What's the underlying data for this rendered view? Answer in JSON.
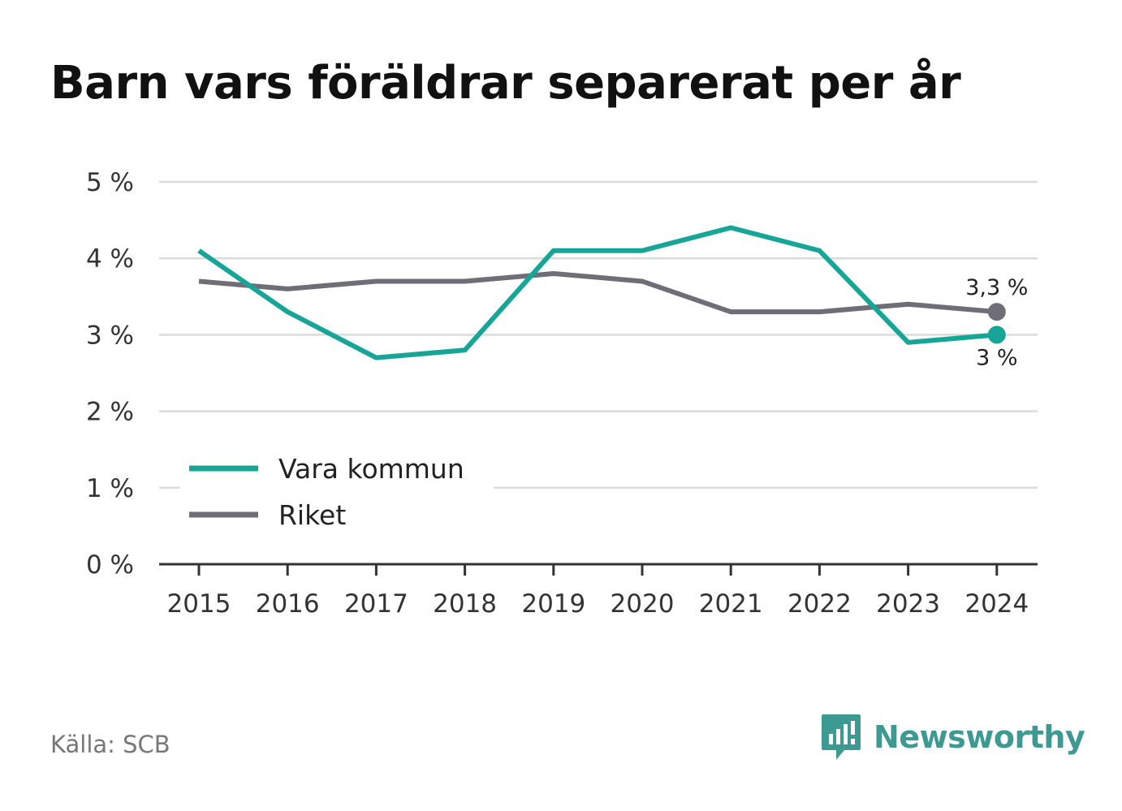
{
  "title": "Barn vars föräldrar separerat per år",
  "source": "Källa: SCB",
  "brand": {
    "name": "Newsworthy",
    "icon": "newsworthy-logo-icon",
    "color": "#3d9a92"
  },
  "chart_data": {
    "type": "line",
    "title": "Barn vars föräldrar separerat per år",
    "x": [
      2015,
      2016,
      2017,
      2018,
      2019,
      2020,
      2021,
      2022,
      2023,
      2024
    ],
    "y_ticks": [
      "0 %",
      "1 %",
      "2 %",
      "3 %",
      "4 %",
      "5 %"
    ],
    "ylim": [
      0,
      5
    ],
    "grid": true,
    "legend_position": "bottom-left",
    "series": [
      {
        "name": "Vara kommun",
        "color": "#17a598",
        "values": [
          4.1,
          3.3,
          2.7,
          2.8,
          4.1,
          4.1,
          4.4,
          4.1,
          2.9,
          3.0
        ],
        "end_label": "3 %"
      },
      {
        "name": "Riket",
        "color": "#6f6e77",
        "values": [
          3.7,
          3.6,
          3.7,
          3.7,
          3.8,
          3.7,
          3.3,
          3.3,
          3.4,
          3.3
        ],
        "end_label": "3,3 %"
      }
    ]
  }
}
